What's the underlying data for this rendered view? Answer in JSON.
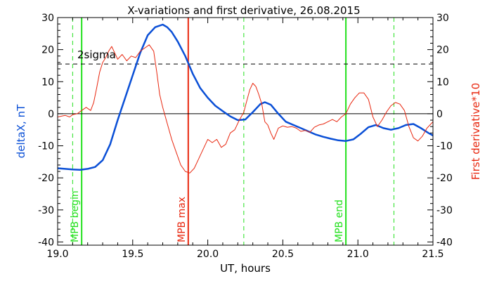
{
  "chart_data": {
    "type": "line",
    "title": "X-variations and first derivative, 26.08.2015",
    "xlabel": "UT, hours",
    "ylabel_left": "deltaX, nT",
    "ylabel_right": "First derivative*10",
    "xlim": [
      19.0,
      21.5
    ],
    "ylim": [
      -41,
      30
    ],
    "x_ticks": [
      19.0,
      19.5,
      20.0,
      20.5,
      21.0,
      21.5
    ],
    "x_tick_labels": [
      "19.0",
      "19.5",
      "20.0",
      "20.5",
      "21.0",
      "21.5"
    ],
    "y_ticks": [
      -40,
      -30,
      -20,
      -10,
      0,
      10,
      20,
      30
    ],
    "y_tick_labels": [
      "-40",
      "-30",
      "-20",
      "-10",
      "0",
      "10",
      "20",
      "30"
    ],
    "grid": false,
    "colors": {
      "deltaX": "#0a4fd6",
      "derivative": "#e8270f",
      "mpb": "#22e01c",
      "mpb_max": "#e8270f",
      "zero_line": "#000000",
      "sigma_line": "#000000"
    },
    "series": [
      {
        "key": "deltaX",
        "axis": "left",
        "x": [
          19.0,
          19.05,
          19.1,
          19.15,
          19.2,
          19.25,
          19.3,
          19.35,
          19.4,
          19.45,
          19.5,
          19.55,
          19.6,
          19.65,
          19.7,
          19.73,
          19.76,
          19.8,
          19.85,
          19.9,
          19.95,
          20.0,
          20.05,
          20.1,
          20.15,
          20.2,
          20.25,
          20.3,
          20.35,
          20.38,
          20.42,
          20.47,
          20.52,
          20.57,
          20.62,
          20.67,
          20.72,
          20.77,
          20.82,
          20.87,
          20.92,
          20.97,
          21.02,
          21.07,
          21.12,
          21.17,
          21.22,
          21.27,
          21.32,
          21.37,
          21.42,
          21.47,
          21.5
        ],
        "values": [
          -17.0,
          -17.2,
          -17.4,
          -17.5,
          -17.2,
          -16.6,
          -14.5,
          -9.5,
          -2.0,
          5.0,
          12.0,
          19.0,
          24.5,
          27.0,
          27.8,
          27.0,
          25.5,
          22.5,
          18.0,
          12.5,
          8.0,
          5.0,
          2.5,
          0.8,
          -0.8,
          -2.0,
          -1.8,
          0.5,
          3.0,
          3.6,
          2.8,
          0.0,
          -2.5,
          -3.5,
          -4.5,
          -5.5,
          -6.5,
          -7.2,
          -7.8,
          -8.3,
          -8.5,
          -8.0,
          -6.2,
          -4.2,
          -3.5,
          -4.5,
          -5.0,
          -4.5,
          -3.5,
          -3.2,
          -4.5,
          -6.0,
          -6.8
        ]
      },
      {
        "key": "derivative",
        "axis": "right",
        "x": [
          19.0,
          19.05,
          19.08,
          19.1,
          19.13,
          19.16,
          19.19,
          19.22,
          19.24,
          19.26,
          19.28,
          19.3,
          19.32,
          19.34,
          19.36,
          19.38,
          19.4,
          19.43,
          19.46,
          19.49,
          19.52,
          19.55,
          19.58,
          19.61,
          19.64,
          19.66,
          19.68,
          19.7,
          19.73,
          19.76,
          19.79,
          19.82,
          19.85,
          19.88,
          19.91,
          19.94,
          19.97,
          20.0,
          20.03,
          20.06,
          20.09,
          20.12,
          20.15,
          20.18,
          20.21,
          20.24,
          20.26,
          20.28,
          20.3,
          20.32,
          20.34,
          20.36,
          20.38,
          20.4,
          20.42,
          20.44,
          20.47,
          20.5,
          20.53,
          20.56,
          20.59,
          20.62,
          20.65,
          20.68,
          20.71,
          20.74,
          20.77,
          20.8,
          20.83,
          20.86,
          20.89,
          20.92,
          20.95,
          20.98,
          21.01,
          21.04,
          21.07,
          21.1,
          21.13,
          21.16,
          21.19,
          21.22,
          21.25,
          21.28,
          21.31,
          21.34,
          21.37,
          21.4,
          21.43,
          21.46,
          21.5
        ],
        "values": [
          -1.0,
          -0.5,
          -1.0,
          -0.3,
          0.0,
          1.0,
          2.0,
          1.0,
          3.5,
          8.0,
          13.0,
          16.0,
          17.5,
          19.5,
          21.0,
          19.0,
          17.0,
          18.5,
          16.5,
          18.0,
          17.5,
          19.5,
          20.5,
          21.5,
          19.5,
          13.0,
          6.0,
          2.0,
          -3.0,
          -8.0,
          -12.0,
          -16.0,
          -18.0,
          -18.5,
          -17.0,
          -14.0,
          -11.0,
          -8.0,
          -9.0,
          -8.0,
          -10.5,
          -9.5,
          -6.0,
          -5.0,
          -2.0,
          0.5,
          4.0,
          7.5,
          9.5,
          8.5,
          6.0,
          3.0,
          -2.5,
          -3.5,
          -6.0,
          -8.0,
          -4.5,
          -3.8,
          -4.2,
          -4.0,
          -4.5,
          -5.5,
          -5.2,
          -5.8,
          -4.2,
          -3.5,
          -3.2,
          -2.5,
          -1.8,
          -2.5,
          -1.0,
          0.0,
          3.0,
          5.0,
          6.5,
          6.5,
          4.5,
          -1.0,
          -4.0,
          -2.0,
          0.5,
          2.5,
          3.5,
          3.0,
          1.0,
          -4.0,
          -7.5,
          -8.5,
          -7.0,
          -4.5,
          -2.5
        ]
      }
    ],
    "reference_lines": {
      "zero": 0,
      "sigma_level": 15.5,
      "sigma_label": "2sigma"
    },
    "vertical_markers": [
      {
        "x": 19.16,
        "style": "solid",
        "colorKey": "mpb",
        "label": "MPB begin"
      },
      {
        "x": 19.87,
        "style": "solid",
        "colorKey": "mpb_max",
        "label": "MPB max"
      },
      {
        "x": 20.92,
        "style": "solid",
        "colorKey": "mpb",
        "label": "MPB end"
      },
      {
        "x": 19.1,
        "style": "dashed",
        "colorKey": "mpb",
        "label": ""
      },
      {
        "x": 20.24,
        "style": "dashed",
        "colorKey": "mpb",
        "label": ""
      },
      {
        "x": 21.24,
        "style": "dashed",
        "colorKey": "mpb",
        "label": ""
      }
    ]
  }
}
